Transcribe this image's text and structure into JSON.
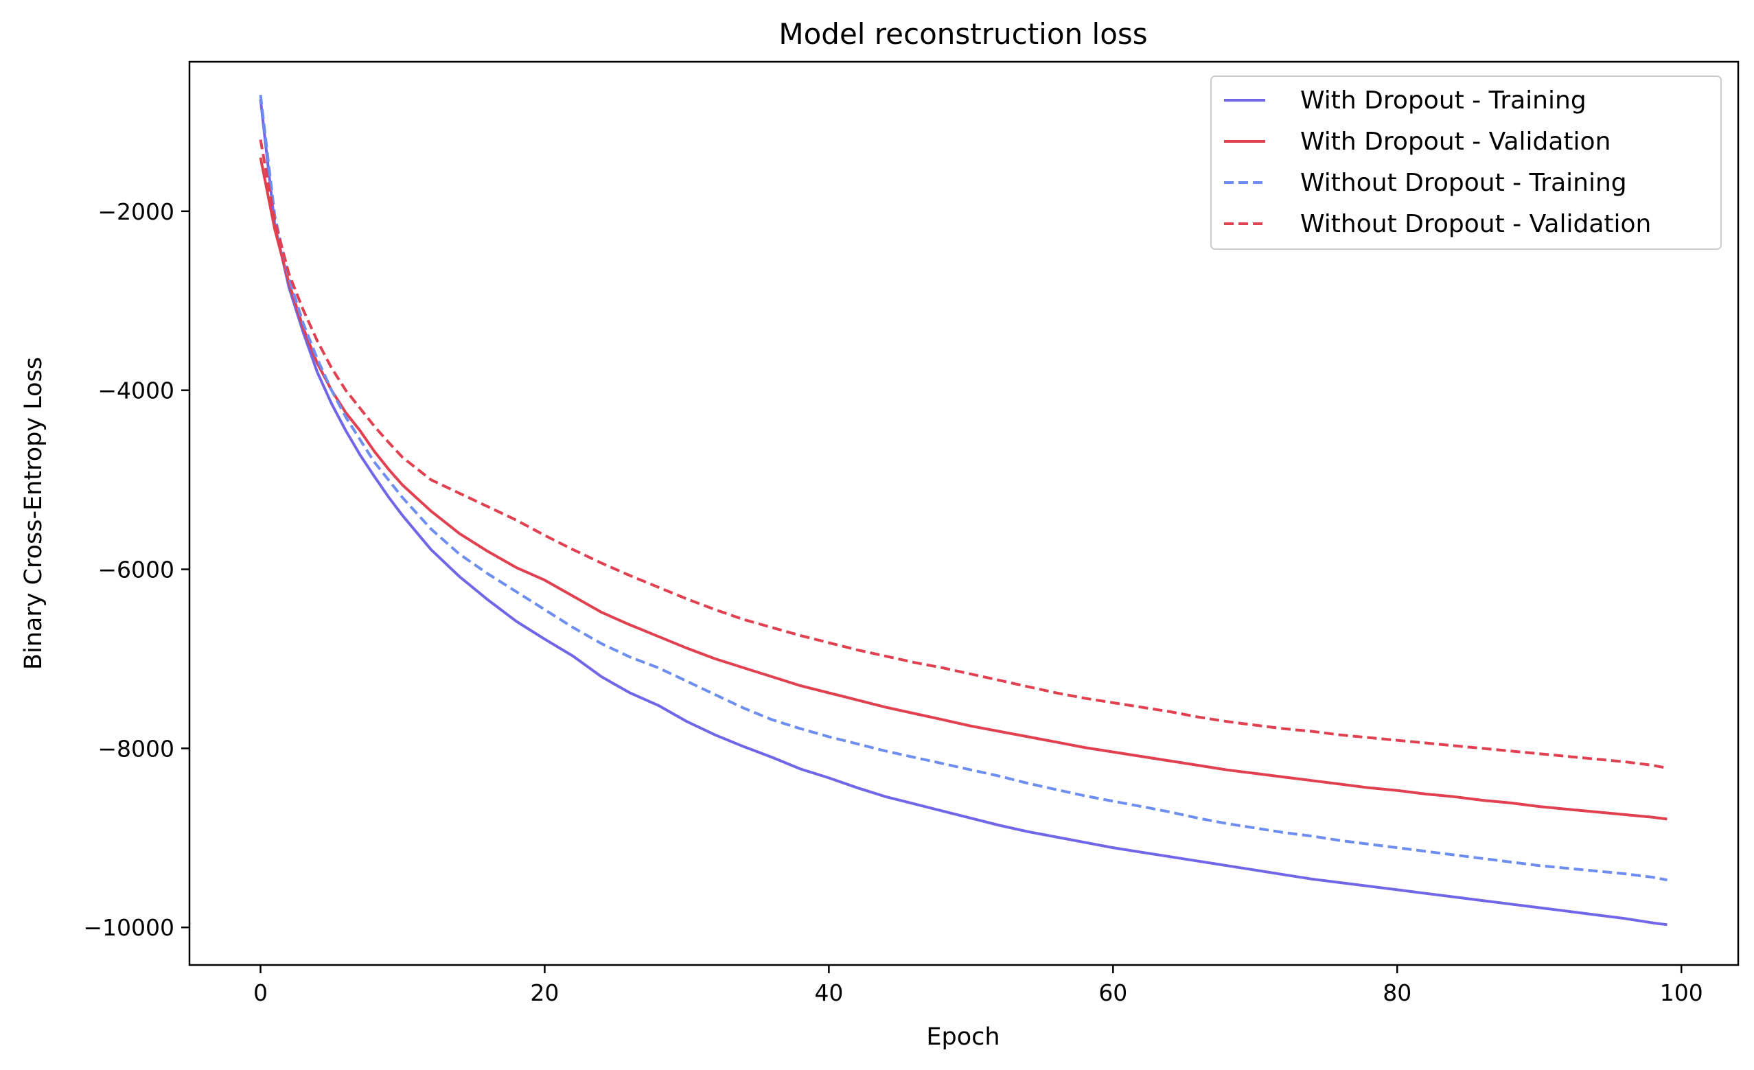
{
  "chart_data": {
    "type": "line",
    "title": "Model reconstruction loss",
    "xlabel": "Epoch",
    "ylabel": "Binary Cross-Entropy Loss",
    "xlim": [
      -5,
      104
    ],
    "ylim": [
      -10420,
      -330
    ],
    "xticks": [
      0,
      20,
      40,
      60,
      80,
      100
    ],
    "yticks": [
      -10000,
      -8000,
      -6000,
      -4000,
      -2000
    ],
    "grid": false,
    "legend_position": "top-right",
    "series": [
      {
        "name": "With Dropout - Training",
        "color": "#7166e8",
        "dash": "solid",
        "x": [
          0,
          1,
          2,
          3,
          4,
          5,
          6,
          7,
          8,
          9,
          10,
          12,
          14,
          16,
          18,
          20,
          22,
          24,
          26,
          28,
          30,
          32,
          34,
          36,
          38,
          40,
          42,
          44,
          46,
          48,
          50,
          52,
          54,
          56,
          58,
          60,
          62,
          64,
          66,
          68,
          70,
          72,
          74,
          76,
          78,
          80,
          82,
          84,
          86,
          88,
          90,
          92,
          94,
          96,
          98,
          99
        ],
        "y": [
          -750,
          -2150,
          -2850,
          -3350,
          -3800,
          -4150,
          -4450,
          -4720,
          -4960,
          -5190,
          -5400,
          -5780,
          -6080,
          -6340,
          -6580,
          -6780,
          -6970,
          -7200,
          -7380,
          -7520,
          -7700,
          -7850,
          -7980,
          -8100,
          -8230,
          -8330,
          -8440,
          -8540,
          -8620,
          -8700,
          -8780,
          -8860,
          -8930,
          -8990,
          -9050,
          -9110,
          -9160,
          -9210,
          -9260,
          -9310,
          -9360,
          -9410,
          -9460,
          -9500,
          -9540,
          -9580,
          -9620,
          -9660,
          -9700,
          -9740,
          -9780,
          -9820,
          -9860,
          -9900,
          -9950,
          -9970
        ]
      },
      {
        "name": "With Dropout - Validation",
        "color": "#e0404f",
        "dash": "solid",
        "x": [
          0,
          1,
          2,
          3,
          4,
          5,
          6,
          7,
          8,
          9,
          10,
          12,
          14,
          16,
          18,
          20,
          22,
          24,
          26,
          28,
          30,
          32,
          34,
          36,
          38,
          40,
          42,
          44,
          46,
          48,
          50,
          52,
          54,
          56,
          58,
          60,
          62,
          64,
          66,
          68,
          70,
          72,
          74,
          76,
          78,
          80,
          82,
          84,
          86,
          88,
          90,
          92,
          94,
          96,
          98,
          99
        ],
        "y": [
          -1400,
          -2200,
          -2800,
          -3300,
          -3700,
          -4000,
          -4250,
          -4450,
          -4680,
          -4880,
          -5060,
          -5350,
          -5600,
          -5800,
          -5980,
          -6120,
          -6300,
          -6480,
          -6620,
          -6750,
          -6880,
          -7000,
          -7100,
          -7200,
          -7300,
          -7380,
          -7460,
          -7540,
          -7610,
          -7680,
          -7750,
          -7810,
          -7870,
          -7930,
          -7990,
          -8040,
          -8090,
          -8140,
          -8190,
          -8240,
          -8280,
          -8320,
          -8360,
          -8400,
          -8440,
          -8470,
          -8510,
          -8540,
          -8580,
          -8610,
          -8650,
          -8680,
          -8710,
          -8740,
          -8770,
          -8790
        ]
      },
      {
        "name": "Without Dropout - Training",
        "color": "#6d8ef0",
        "dash": "dashed",
        "x": [
          0,
          1,
          2,
          3,
          4,
          5,
          6,
          7,
          8,
          9,
          10,
          12,
          14,
          16,
          18,
          20,
          22,
          24,
          26,
          28,
          30,
          32,
          34,
          36,
          38,
          40,
          42,
          44,
          46,
          48,
          50,
          52,
          54,
          56,
          58,
          60,
          62,
          64,
          66,
          68,
          70,
          72,
          74,
          76,
          78,
          80,
          82,
          84,
          86,
          88,
          90,
          92,
          94,
          96,
          98,
          99
        ],
        "y": [
          -700,
          -2050,
          -2750,
          -3250,
          -3650,
          -4000,
          -4300,
          -4550,
          -4800,
          -5000,
          -5200,
          -5550,
          -5830,
          -6050,
          -6250,
          -6450,
          -6650,
          -6830,
          -6980,
          -7100,
          -7250,
          -7400,
          -7550,
          -7680,
          -7780,
          -7870,
          -7950,
          -8030,
          -8100,
          -8170,
          -8240,
          -8310,
          -8390,
          -8460,
          -8530,
          -8590,
          -8650,
          -8710,
          -8780,
          -8840,
          -8890,
          -8940,
          -8980,
          -9030,
          -9070,
          -9110,
          -9150,
          -9190,
          -9230,
          -9270,
          -9310,
          -9340,
          -9370,
          -9400,
          -9440,
          -9470
        ]
      },
      {
        "name": "Without Dropout - Validation",
        "color": "#e0404f",
        "dash": "dashed",
        "x": [
          0,
          1,
          2,
          3,
          4,
          5,
          6,
          7,
          8,
          9,
          10,
          12,
          14,
          16,
          18,
          20,
          22,
          24,
          26,
          28,
          30,
          32,
          34,
          36,
          38,
          40,
          42,
          44,
          46,
          48,
          50,
          52,
          54,
          56,
          58,
          60,
          62,
          64,
          66,
          68,
          70,
          72,
          74,
          76,
          78,
          80,
          82,
          84,
          86,
          88,
          90,
          92,
          94,
          96,
          98,
          99
        ],
        "y": [
          -1200,
          -2100,
          -2700,
          -3100,
          -3450,
          -3750,
          -4000,
          -4200,
          -4400,
          -4580,
          -4750,
          -5000,
          -5150,
          -5300,
          -5450,
          -5620,
          -5780,
          -5930,
          -6070,
          -6200,
          -6330,
          -6450,
          -6560,
          -6650,
          -6740,
          -6820,
          -6900,
          -6970,
          -7040,
          -7100,
          -7170,
          -7240,
          -7310,
          -7380,
          -7440,
          -7490,
          -7540,
          -7590,
          -7650,
          -7700,
          -7740,
          -7780,
          -7810,
          -7850,
          -7880,
          -7910,
          -7940,
          -7970,
          -8000,
          -8030,
          -8060,
          -8090,
          -8120,
          -8150,
          -8190,
          -8220
        ]
      }
    ]
  }
}
